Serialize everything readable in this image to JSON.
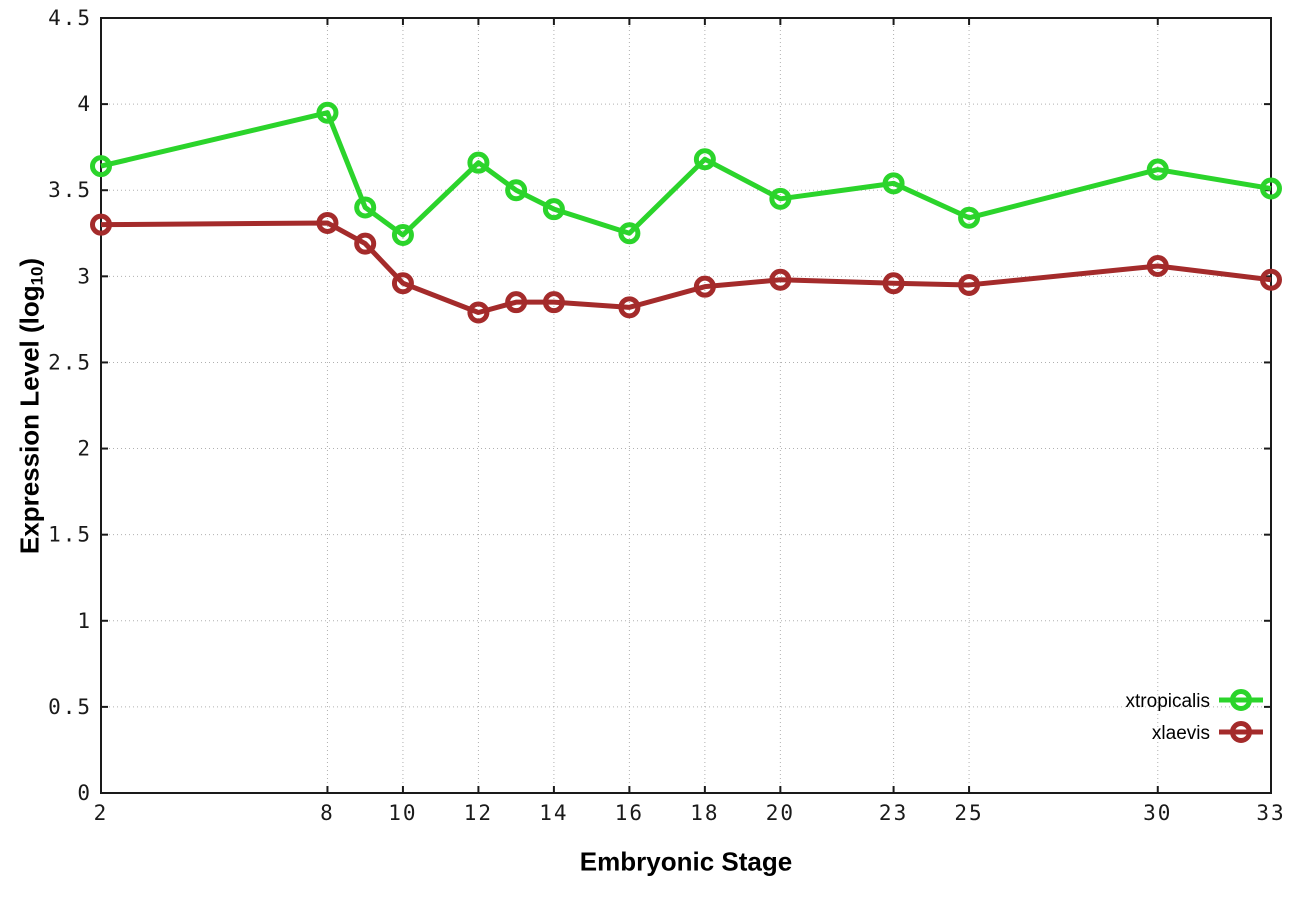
{
  "chart_data": {
    "type": "line",
    "title": "",
    "xlabel": "Embryonic Stage",
    "ylabel": "Expression Level (log10)",
    "ylabel_parts": {
      "pre": "Expression Level (log",
      "sub": "10",
      "post": ")"
    },
    "xlim": [
      2,
      33
    ],
    "ylim": [
      0,
      4.5
    ],
    "x_tick_values": [
      2,
      8,
      10,
      12,
      14,
      16,
      18,
      20,
      23,
      25,
      30,
      33
    ],
    "x_tick_labels": [
      "2",
      "8",
      "10",
      "12",
      "14",
      "16",
      "18",
      "20",
      "23",
      "25",
      "30",
      "33"
    ],
    "y_tick_values": [
      0,
      0.5,
      1,
      1.5,
      2,
      2.5,
      3,
      3.5,
      4,
      4.5
    ],
    "y_tick_labels": [
      "0",
      "0.5",
      "1",
      "1.5",
      "2",
      "2.5",
      "3",
      "3.5",
      "4",
      "4.5"
    ],
    "grid": true,
    "legend_position": "inside-bottom-right",
    "marker": "open-circle",
    "x": [
      2,
      8,
      9,
      10,
      12,
      13,
      14,
      16,
      18,
      20,
      23,
      25,
      30,
      33
    ],
    "series": [
      {
        "name": "xtropicalis",
        "color": "#2bd42b",
        "values": [
          3.64,
          3.95,
          3.4,
          3.24,
          3.66,
          3.5,
          3.39,
          3.25,
          3.68,
          3.45,
          3.54,
          3.34,
          3.62,
          3.51
        ]
      },
      {
        "name": "xlaevis",
        "color": "#a42b2b",
        "values": [
          3.3,
          3.31,
          3.19,
          2.96,
          2.79,
          2.85,
          2.85,
          2.82,
          2.94,
          2.98,
          2.96,
          2.95,
          3.06,
          2.98
        ]
      }
    ],
    "colors": {
      "border": "#1a1a1a",
      "grid": "#b0b0b0",
      "tick_text": "#1a1a1a",
      "legend_text": "#000000"
    }
  }
}
